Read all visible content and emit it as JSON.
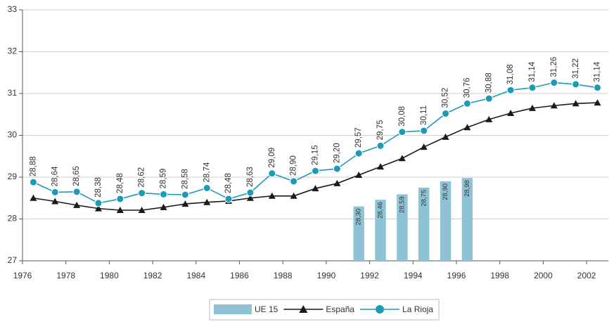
{
  "chart_data": {
    "type": "line",
    "x": [
      1976,
      1977,
      1978,
      1979,
      1980,
      1981,
      1982,
      1983,
      1984,
      1985,
      1986,
      1987,
      1988,
      1989,
      1990,
      1991,
      1992,
      1993,
      1994,
      1995,
      1996,
      1997,
      1998,
      1999,
      2000,
      2001,
      2002
    ],
    "xlim": [
      1976,
      2003
    ],
    "xticks": [
      1976,
      1978,
      1980,
      1982,
      1984,
      1986,
      1988,
      1990,
      1992,
      1994,
      1996,
      1998,
      2000,
      2002
    ],
    "ylim": [
      27,
      33
    ],
    "yticks": [
      27,
      28,
      29,
      30,
      31,
      32,
      33
    ],
    "grid": true,
    "legend": "bottom",
    "series": [
      {
        "name": "UE 15",
        "type": "bar",
        "color": "#8dc3d5",
        "values": [
          null,
          null,
          null,
          null,
          null,
          null,
          null,
          null,
          null,
          null,
          null,
          null,
          null,
          null,
          null,
          28.3,
          28.46,
          28.59,
          28.75,
          28.9,
          28.98,
          null,
          null,
          null,
          null,
          null,
          null
        ],
        "value_labels": [
          null,
          null,
          null,
          null,
          null,
          null,
          null,
          null,
          null,
          null,
          null,
          null,
          null,
          null,
          null,
          "28,30",
          "28,46",
          "28,59",
          "28,75",
          "28,90",
          "28,98",
          null,
          null,
          null,
          null,
          null,
          null
        ]
      },
      {
        "name": "España",
        "type": "line",
        "marker": "triangle",
        "color": "#1a1a1a",
        "values": [
          28.5,
          28.42,
          28.33,
          28.25,
          28.21,
          28.21,
          28.28,
          28.36,
          28.4,
          28.43,
          28.5,
          28.55,
          28.55,
          28.73,
          28.85,
          29.05,
          29.25,
          29.45,
          29.72,
          29.96,
          30.19,
          30.38,
          30.53,
          30.65,
          30.71,
          30.76,
          30.78
        ]
      },
      {
        "name": "La Rioja",
        "type": "line",
        "marker": "circle",
        "color": "#1a9bb6",
        "values": [
          28.88,
          28.64,
          28.65,
          28.38,
          28.48,
          28.62,
          28.59,
          28.58,
          28.74,
          28.48,
          28.63,
          29.09,
          28.9,
          29.15,
          29.2,
          29.57,
          29.75,
          30.08,
          30.11,
          30.52,
          30.76,
          30.88,
          31.08,
          31.14,
          31.26,
          31.22,
          31.14
        ],
        "value_labels": [
          "28,88",
          "28,64",
          "28,65",
          "28,38",
          "28,48",
          "28,62",
          "28,59",
          "28,58",
          "28,74",
          "28,48",
          "28,63",
          "29,09",
          "28,90",
          "29,15",
          "29,20",
          "29,57",
          "29,75",
          "30,08",
          "30,11",
          "30,52",
          "30,76",
          "30,88",
          "31,08",
          "31,14",
          "31,26",
          "31,22",
          "31,14"
        ]
      }
    ]
  }
}
